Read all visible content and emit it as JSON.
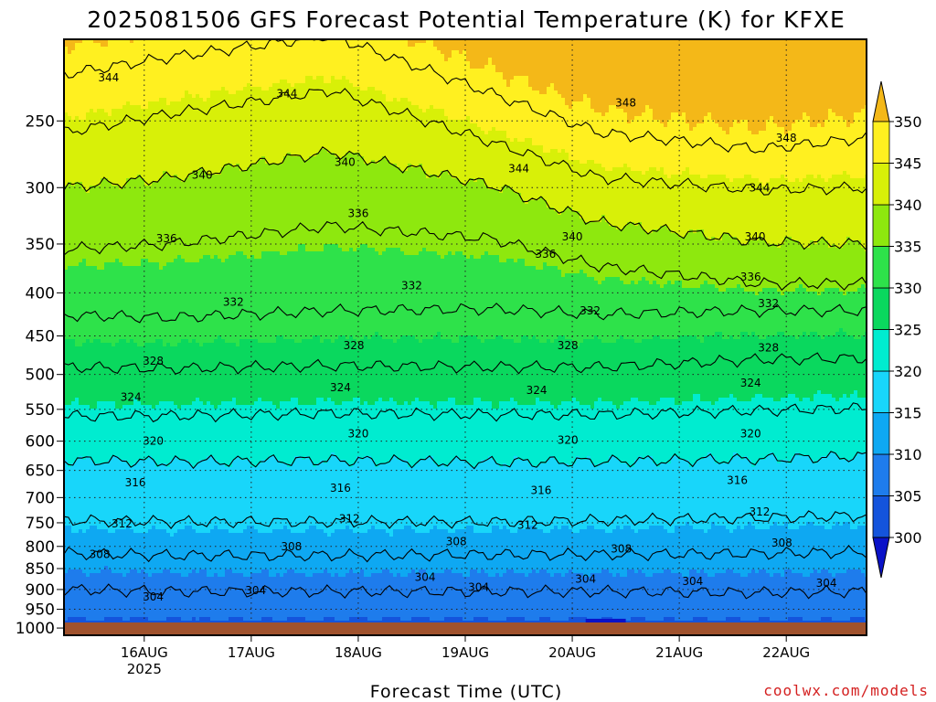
{
  "chart_data": {
    "type": "heatmap",
    "title": "2025081506 GFS Forecast Potential Temperature (K) for KFXE",
    "xlabel": "Forecast Time (UTC)",
    "ylabel": "",
    "credit": "coolwx.com/models",
    "x_ticks": [
      {
        "label": "16AUG",
        "sublabel": "2025",
        "hour": 18
      },
      {
        "label": "17AUG",
        "sublabel": "",
        "hour": 42
      },
      {
        "label": "18AUG",
        "sublabel": "",
        "hour": 66
      },
      {
        "label": "19AUG",
        "sublabel": "",
        "hour": 90
      },
      {
        "label": "20AUG",
        "sublabel": "",
        "hour": 114
      },
      {
        "label": "21AUG",
        "sublabel": "",
        "hour": 138
      },
      {
        "label": "22AUG",
        "sublabel": "",
        "hour": 162
      }
    ],
    "x_range_hours": [
      0,
      180
    ],
    "y_ticks": [
      250,
      300,
      350,
      400,
      450,
      500,
      550,
      600,
      650,
      700,
      750,
      800,
      850,
      900,
      950,
      1000
    ],
    "y_range_hpa": [
      200,
      1020
    ],
    "y_scale": "log-pressure",
    "grid": true,
    "colorbar": {
      "levels": [
        300,
        305,
        310,
        315,
        320,
        325,
        330,
        335,
        340,
        345,
        350
      ],
      "colors": [
        "#0a12c8",
        "#1454dc",
        "#1e7cec",
        "#0ea8f2",
        "#18d6fa",
        "#00ecd0",
        "#0ad85e",
        "#2ee24a",
        "#8ee80e",
        "#d8f008",
        "#fff020",
        "#f4b818"
      ],
      "extend": "both"
    },
    "contour_interval": 4,
    "contour_levels": [
      304,
      308,
      312,
      316,
      320,
      324,
      328,
      332,
      336,
      340,
      344,
      348
    ],
    "profiles": [
      {
        "hour": 0,
        "p_hpa": [
          1000,
          900,
          815,
          745,
          632,
          560,
          490,
          425,
          355,
          300,
          258,
          220
        ]
      },
      {
        "hour": 24,
        "p_hpa": [
          1000,
          905,
          820,
          748,
          635,
          560,
          492,
          428,
          350,
          292,
          245,
          210
        ]
      },
      {
        "hour": 60,
        "p_hpa": [
          1000,
          905,
          820,
          748,
          632,
          556,
          488,
          420,
          333,
          272,
          230,
          198
        ]
      },
      {
        "hour": 96,
        "p_hpa": [
          1000,
          905,
          818,
          748,
          636,
          558,
          490,
          418,
          345,
          298,
          265,
          232
        ]
      },
      {
        "hour": 120,
        "p_hpa": [
          1000,
          905,
          818,
          745,
          634,
          558,
          490,
          424,
          372,
          330,
          292,
          258
        ]
      },
      {
        "hour": 156,
        "p_hpa": [
          1000,
          908,
          816,
          740,
          630,
          552,
          480,
          420,
          390,
          348,
          302,
          270
        ]
      },
      {
        "hour": 180,
        "p_hpa": [
          1000,
          905,
          812,
          735,
          625,
          548,
          478,
          420,
          390,
          350,
          300,
          262
        ]
      }
    ],
    "contour_labels": [
      {
        "value": "344",
        "hour": 10,
        "p": 222
      },
      {
        "value": "344",
        "hour": 50,
        "p": 232
      },
      {
        "value": "348",
        "hour": 126,
        "p": 238
      },
      {
        "value": "348",
        "hour": 162,
        "p": 262
      },
      {
        "value": "344",
        "hour": 102,
        "p": 285
      },
      {
        "value": "344",
        "hour": 156,
        "p": 300
      },
      {
        "value": "340",
        "hour": 31,
        "p": 290
      },
      {
        "value": "340",
        "hour": 63,
        "p": 280
      },
      {
        "value": "340",
        "hour": 114,
        "p": 343
      },
      {
        "value": "340",
        "hour": 155,
        "p": 343
      },
      {
        "value": "336",
        "hour": 23,
        "p": 345
      },
      {
        "value": "336",
        "hour": 66,
        "p": 322
      },
      {
        "value": "336",
        "hour": 108,
        "p": 360
      },
      {
        "value": "336",
        "hour": 154,
        "p": 383
      },
      {
        "value": "332",
        "hour": 38,
        "p": 410
      },
      {
        "value": "332",
        "hour": 78,
        "p": 392
      },
      {
        "value": "332",
        "hour": 118,
        "p": 420
      },
      {
        "value": "332",
        "hour": 158,
        "p": 412
      },
      {
        "value": "328",
        "hour": 20,
        "p": 482
      },
      {
        "value": "328",
        "hour": 65,
        "p": 462
      },
      {
        "value": "328",
        "hour": 113,
        "p": 462
      },
      {
        "value": "328",
        "hour": 158,
        "p": 465
      },
      {
        "value": "324",
        "hour": 15,
        "p": 532
      },
      {
        "value": "324",
        "hour": 62,
        "p": 518
      },
      {
        "value": "324",
        "hour": 106,
        "p": 522
      },
      {
        "value": "324",
        "hour": 154,
        "p": 512
      },
      {
        "value": "320",
        "hour": 20,
        "p": 600
      },
      {
        "value": "320",
        "hour": 66,
        "p": 588
      },
      {
        "value": "320",
        "hour": 113,
        "p": 598
      },
      {
        "value": "320",
        "hour": 154,
        "p": 588
      },
      {
        "value": "316",
        "hour": 16,
        "p": 672
      },
      {
        "value": "316",
        "hour": 62,
        "p": 682
      },
      {
        "value": "316",
        "hour": 107,
        "p": 686
      },
      {
        "value": "316",
        "hour": 151,
        "p": 668
      },
      {
        "value": "312",
        "hour": 13,
        "p": 752
      },
      {
        "value": "312",
        "hour": 64,
        "p": 742
      },
      {
        "value": "312",
        "hour": 104,
        "p": 755
      },
      {
        "value": "312",
        "hour": 156,
        "p": 728
      },
      {
        "value": "308",
        "hour": 8,
        "p": 818
      },
      {
        "value": "308",
        "hour": 51,
        "p": 800
      },
      {
        "value": "308",
        "hour": 88,
        "p": 790
      },
      {
        "value": "308",
        "hour": 125,
        "p": 805
      },
      {
        "value": "308",
        "hour": 161,
        "p": 792
      },
      {
        "value": "304",
        "hour": 20,
        "p": 918
      },
      {
        "value": "304",
        "hour": 43,
        "p": 902
      },
      {
        "value": "304",
        "hour": 81,
        "p": 870
      },
      {
        "value": "304",
        "hour": 93,
        "p": 895
      },
      {
        "value": "304",
        "hour": 117,
        "p": 875
      },
      {
        "value": "304",
        "hour": 141,
        "p": 880
      },
      {
        "value": "304",
        "hour": 171,
        "p": 885
      }
    ],
    "cold_pools_below_300K": [
      [
        100,
        102,
        985
      ],
      [
        117,
        126,
        975
      ]
    ]
  }
}
